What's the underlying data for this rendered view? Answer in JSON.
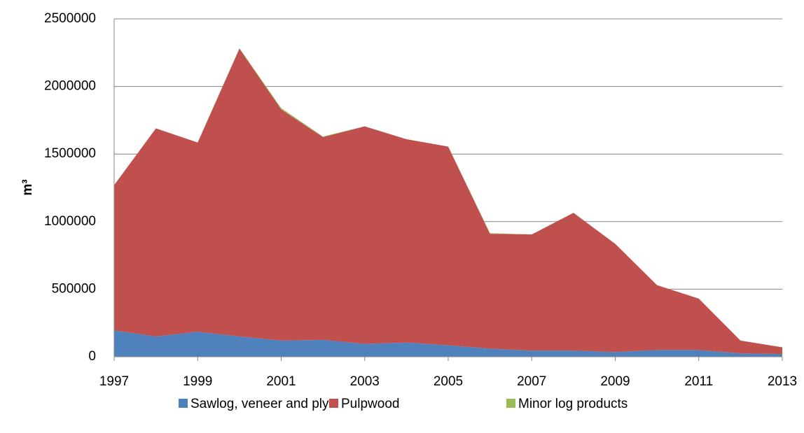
{
  "chart_data": {
    "type": "area",
    "stacked": true,
    "y_label": "m³",
    "x": [
      1997,
      1998,
      1999,
      2000,
      2001,
      2002,
      2003,
      2004,
      2005,
      2006,
      2007,
      2008,
      2009,
      2010,
      2011,
      2012,
      2013
    ],
    "xlim": [
      1997,
      2013
    ],
    "xticks": [
      1997,
      1999,
      2001,
      2003,
      2005,
      2007,
      2009,
      2011,
      2013
    ],
    "ylim": [
      0,
      2500000
    ],
    "yticks": [
      0,
      500000,
      1000000,
      1500000,
      2000000,
      2500000
    ],
    "grid": true,
    "legend": "bottom",
    "series": [
      {
        "name": "Sawlog, veneer and ply",
        "color": "#4f81bd",
        "values": [
          195000,
          150000,
          185000,
          150000,
          120000,
          125000,
          95000,
          105000,
          85000,
          60000,
          45000,
          45000,
          35000,
          50000,
          50000,
          25000,
          20000
        ]
      },
      {
        "name": "Pulpwood",
        "color": "#c0504d",
        "values": [
          1075000,
          1540000,
          1400000,
          2130000,
          1710000,
          1500000,
          1610000,
          1505000,
          1470000,
          850000,
          860000,
          1020000,
          800000,
          480000,
          380000,
          95000,
          50000
        ]
      },
      {
        "name": "Minor log products",
        "color": "#9bbb59",
        "values": [
          0,
          0,
          0,
          3000,
          10000,
          5000,
          0,
          0,
          0,
          5000,
          0,
          0,
          0,
          0,
          0,
          0,
          0
        ]
      }
    ]
  }
}
